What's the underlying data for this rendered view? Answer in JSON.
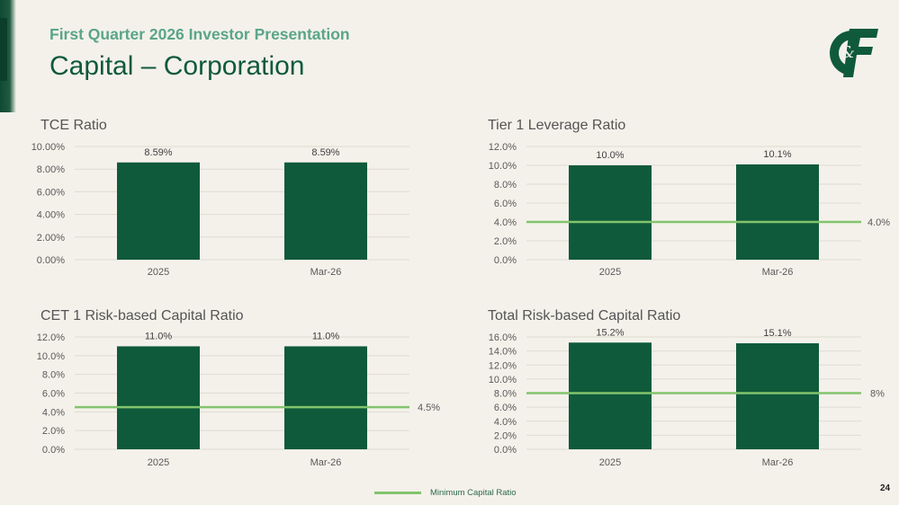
{
  "header": {
    "subtitle": "First Quarter 2026 Investor Presentation",
    "title": "Capital – Corporation"
  },
  "logo": {
    "text": "C&F"
  },
  "colors": {
    "bar": "#0f5a3b",
    "min_line": "#82c46c",
    "grid": "#dedbd3"
  },
  "legend": {
    "label": "Minimum Capital Ratio"
  },
  "page_number": "24",
  "chart_data": [
    {
      "type": "bar",
      "title": "TCE Ratio",
      "categories": [
        "2025",
        "Mar-26"
      ],
      "values": [
        8.59,
        8.59
      ],
      "value_labels": [
        "8.59%",
        "8.59%"
      ],
      "ylim": [
        0,
        10
      ],
      "yticks": [
        "0.00%",
        "2.00%",
        "4.00%",
        "6.00%",
        "8.00%",
        "10.00%"
      ],
      "grid": true
    },
    {
      "type": "bar",
      "title": "Tier 1 Leverage Ratio",
      "categories": [
        "2025",
        "Mar-26"
      ],
      "values": [
        10.0,
        10.1
      ],
      "value_labels": [
        "10.0%",
        "10.1%"
      ],
      "ylim": [
        0,
        12
      ],
      "yticks": [
        "0.0%",
        "2.0%",
        "4.0%",
        "6.0%",
        "8.0%",
        "10.0%",
        "12.0%"
      ],
      "minimum": 4.0,
      "minimum_label": "4.0%",
      "grid": true
    },
    {
      "type": "bar",
      "title": "CET 1 Risk-based Capital Ratio",
      "categories": [
        "2025",
        "Mar-26"
      ],
      "values": [
        11.0,
        11.0
      ],
      "value_labels": [
        "11.0%",
        "11.0%"
      ],
      "ylim": [
        0,
        12
      ],
      "yticks": [
        "0.0%",
        "2.0%",
        "4.0%",
        "6.0%",
        "8.0%",
        "10.0%",
        "12.0%"
      ],
      "minimum": 4.5,
      "minimum_label": "4.5%",
      "grid": true
    },
    {
      "type": "bar",
      "title": "Total Risk-based Capital Ratio",
      "categories": [
        "2025",
        "Mar-26"
      ],
      "values": [
        15.2,
        15.1
      ],
      "value_labels": [
        "15.2%",
        "15.1%"
      ],
      "ylim": [
        0,
        16
      ],
      "yticks": [
        "0.0%",
        "2.0%",
        "4.0%",
        "6.0%",
        "8.0%",
        "10.0%",
        "12.0%",
        "14.0%",
        "16.0%"
      ],
      "minimum": 8,
      "minimum_label": "8%",
      "grid": true
    }
  ]
}
